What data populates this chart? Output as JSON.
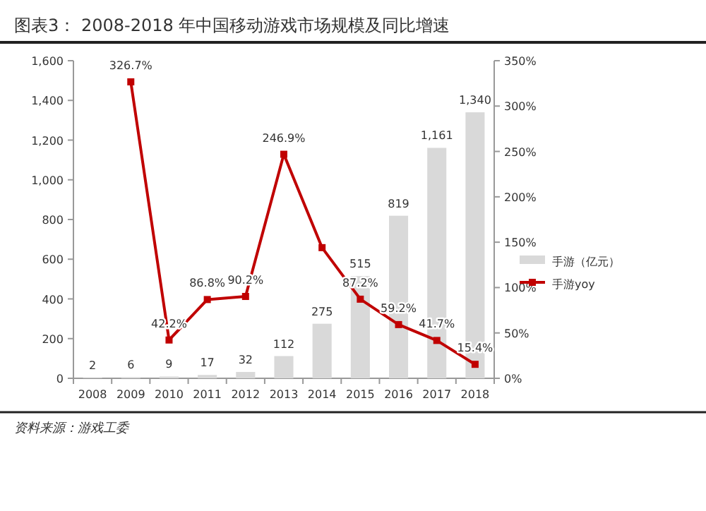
{
  "chart_data": {
    "type": "bar",
    "title": "图表3：  2008-2018 年中国移动游戏市场规模及同比增速",
    "categories": [
      "2008",
      "2009",
      "2010",
      "2011",
      "2012",
      "2013",
      "2014",
      "2015",
      "2016",
      "2017",
      "2018"
    ],
    "series": [
      {
        "name": "手游（亿元）",
        "color": "#d9d9d9",
        "values": [
          2,
          6,
          9,
          17,
          32,
          112,
          275,
          515,
          819,
          1161,
          1340
        ],
        "value_labels": [
          "2",
          "6",
          "9",
          "17",
          "32",
          "112",
          "275",
          "515",
          "819",
          "1,161",
          "1,340"
        ]
      },
      {
        "name": "手游yoy",
        "type": "line",
        "axis": "y2",
        "color": "#c00000",
        "values": [
          null,
          326.7,
          42.2,
          86.8,
          90.2,
          246.9,
          144,
          87.2,
          59.2,
          41.7,
          15.4
        ],
        "value_labels": [
          null,
          "326.7%",
          "42.2%",
          "86.8%",
          "90.2%",
          "246.9%",
          null,
          "87.2%",
          "59.2%",
          "41.7%",
          "15.4%"
        ]
      }
    ],
    "ylim": [
      0,
      1600
    ],
    "yticks": [
      0,
      {
        "value": 200,
        "label": "200"
      },
      400,
      600,
      800,
      {
        "value": 1000,
        "label": "1,000"
      },
      {
        "value": 1200,
        "label": "1,200"
      },
      {
        "value": 1400,
        "label": "1,400"
      },
      {
        "value": 1600,
        "label": "1,600"
      }
    ],
    "y2lim": [
      0,
      350
    ],
    "y2ticks": [
      {
        "value": 0,
        "label": "0%"
      },
      {
        "value": 50,
        "label": "50%"
      },
      {
        "value": 100,
        "label": "100%"
      },
      {
        "value": 150,
        "label": "150%"
      },
      {
        "value": 200,
        "label": "200%"
      },
      {
        "value": 250,
        "label": "250%"
      },
      {
        "value": 300,
        "label": "300%"
      },
      {
        "value": 350,
        "label": "350%"
      }
    ],
    "marker": "square",
    "legend": "right",
    "grid": false,
    "annotations": [
      "资料来源：游戏工委"
    ]
  }
}
